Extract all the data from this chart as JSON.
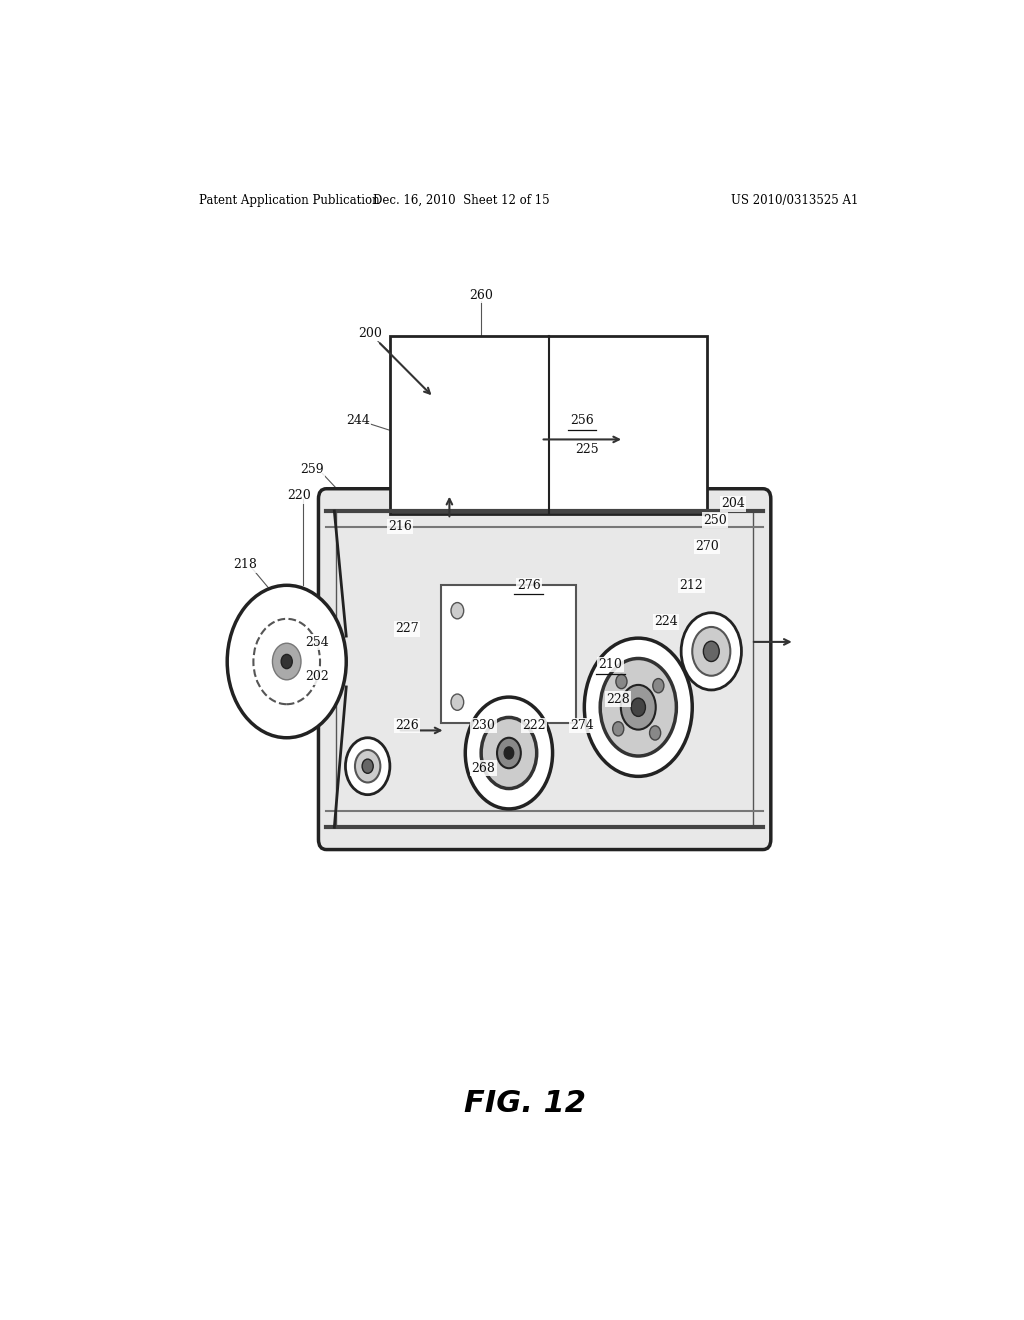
{
  "bg_color": "#ffffff",
  "header_left": "Patent Application Publication",
  "header_mid": "Dec. 16, 2010  Sheet 12 of 15",
  "header_right": "US 2010/0313525 A1",
  "fig_label": "FIG. 12",
  "underlined_labels": [
    "256",
    "276",
    "210"
  ],
  "arrow_color": "#333333",
  "line_color": "#222222",
  "line_width": 1.5,
  "diagram_color": "#333333"
}
